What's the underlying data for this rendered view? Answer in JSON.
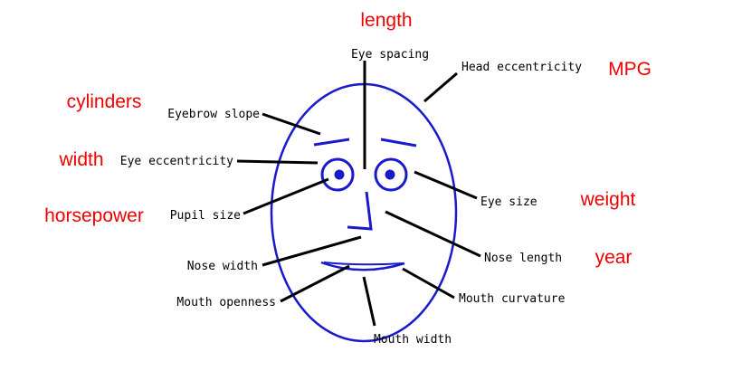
{
  "colors": {
    "face": "#1a1acd",
    "leader": "#000000",
    "variable": "#ee0000"
  },
  "features": {
    "eye_spacing": "Eye spacing",
    "head_eccentricity": "Head eccentricity",
    "eyebrow_slope": "Eyebrow slope",
    "eye_eccentricity": "Eye eccentricity",
    "pupil_size": "Pupil size",
    "eye_size": "Eye size",
    "nose_width": "Nose width",
    "nose_length": "Nose length",
    "mouth_openness": "Mouth openness",
    "mouth_curvature": "Mouth curvature",
    "mouth_width": "Mouth width"
  },
  "variables": {
    "length": "length",
    "mpg": "MPG",
    "cylinders": "cylinders",
    "width": "width",
    "horsepower": "horsepower",
    "weight": "weight",
    "year": "year"
  }
}
